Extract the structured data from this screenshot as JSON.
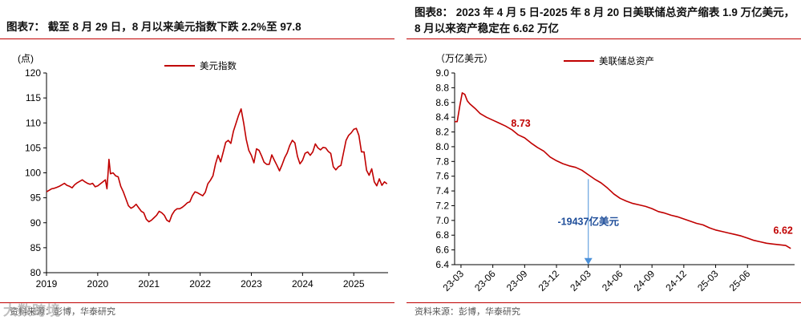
{
  "left": {
    "title": "图表7：  截至 8 月 29 日，8 月以来美元指数下跌 2.2%至 97.8",
    "source": "资料来源：彭博，华泰研究",
    "watermark": "大数跨境",
    "colors": {
      "series": "#c00000",
      "rule": "#c00000"
    },
    "chart_data": {
      "type": "line",
      "ylabel": "(点)",
      "ylim": [
        80,
        120
      ],
      "yticks": [
        80,
        85,
        90,
        95,
        100,
        105,
        110,
        115,
        120
      ],
      "xlim": [
        2019.0,
        2025.67
      ],
      "xticks": [
        "2019",
        "2020",
        "2021",
        "2022",
        "2023",
        "2024",
        "2025"
      ],
      "legend_position": "top-center",
      "series": [
        {
          "name": "美元指数",
          "color": "#c00000",
          "x": [
            2019.0,
            2019.05,
            2019.1,
            2019.15,
            2019.2,
            2019.25,
            2019.3,
            2019.35,
            2019.4,
            2019.45,
            2019.5,
            2019.55,
            2019.6,
            2019.65,
            2019.7,
            2019.75,
            2019.8,
            2019.85,
            2019.9,
            2019.95,
            2020.0,
            2020.05,
            2020.1,
            2020.15,
            2020.18,
            2020.2,
            2020.22,
            2020.25,
            2020.3,
            2020.35,
            2020.4,
            2020.45,
            2020.5,
            2020.55,
            2020.6,
            2020.65,
            2020.7,
            2020.75,
            2020.8,
            2020.85,
            2020.9,
            2020.95,
            2021.0,
            2021.05,
            2021.1,
            2021.15,
            2021.2,
            2021.25,
            2021.3,
            2021.35,
            2021.4,
            2021.45,
            2021.5,
            2021.55,
            2021.6,
            2021.65,
            2021.7,
            2021.75,
            2021.8,
            2021.85,
            2021.9,
            2021.95,
            2022.0,
            2022.05,
            2022.1,
            2022.15,
            2022.2,
            2022.25,
            2022.3,
            2022.35,
            2022.4,
            2022.45,
            2022.5,
            2022.55,
            2022.6,
            2022.65,
            2022.7,
            2022.75,
            2022.8,
            2022.85,
            2022.9,
            2022.95,
            2023.0,
            2023.05,
            2023.1,
            2023.15,
            2023.2,
            2023.25,
            2023.3,
            2023.35,
            2023.4,
            2023.45,
            2023.5,
            2023.55,
            2023.6,
            2023.65,
            2023.7,
            2023.75,
            2023.8,
            2023.85,
            2023.9,
            2023.95,
            2024.0,
            2024.05,
            2024.1,
            2024.15,
            2024.2,
            2024.25,
            2024.3,
            2024.35,
            2024.4,
            2024.45,
            2024.5,
            2024.55,
            2024.6,
            2024.65,
            2024.7,
            2024.75,
            2024.8,
            2024.85,
            2024.9,
            2024.95,
            2025.0,
            2025.05,
            2025.1,
            2025.15,
            2025.2,
            2025.25,
            2025.3,
            2025.35,
            2025.4,
            2025.45,
            2025.5,
            2025.55,
            2025.6,
            2025.65
          ],
          "y": [
            96.2,
            96.5,
            96.8,
            96.9,
            97.1,
            97.3,
            97.6,
            97.9,
            97.5,
            97.3,
            97.0,
            97.6,
            98.0,
            98.3,
            98.6,
            98.2,
            97.9,
            97.7,
            97.9,
            97.2,
            97.4,
            97.8,
            98.2,
            98.6,
            96.8,
            99.5,
            102.7,
            99.8,
            100.0,
            99.4,
            99.2,
            97.3,
            96.2,
            94.8,
            93.4,
            92.9,
            93.2,
            93.7,
            93.0,
            92.3,
            92.0,
            90.7,
            90.2,
            90.5,
            91.0,
            91.5,
            92.3,
            92.0,
            91.5,
            90.5,
            90.2,
            91.6,
            92.4,
            92.8,
            92.8,
            93.1,
            93.5,
            94.0,
            94.2,
            95.4,
            96.2,
            96.0,
            95.7,
            95.4,
            96.1,
            97.8,
            98.5,
            99.4,
            101.8,
            103.5,
            102.2,
            104.1,
            106.1,
            106.5,
            105.9,
            108.3,
            109.9,
            111.5,
            112.8,
            110.0,
            106.7,
            104.5,
            103.5,
            102.0,
            104.8,
            104.5,
            103.4,
            102.1,
            101.7,
            101.7,
            103.6,
            102.5,
            101.5,
            100.4,
            101.6,
            103.0,
            104.0,
            105.5,
            106.5,
            106.0,
            103.3,
            101.8,
            102.5,
            103.9,
            104.2,
            103.5,
            104.2,
            105.8,
            105.0,
            104.6,
            105.1,
            105.0,
            104.3,
            103.9,
            101.2,
            100.6,
            101.2,
            101.5,
            104.0,
            106.5,
            107.5,
            108.0,
            108.7,
            108.9,
            107.5,
            104.2,
            104.2,
            100.5,
            99.5,
            100.8,
            98.2,
            97.4,
            98.8,
            97.5,
            98.2,
            97.8
          ]
        }
      ]
    }
  },
  "right": {
    "title": "图表8：  2023 年 4 月 5 日-2025 年 8 月 20 日美联储总资产缩表 1.9 万亿美元，8 月以来资产稳定在 6.62 万亿",
    "source": "资料来源：彭博，华泰研究",
    "colors": {
      "series": "#c00000",
      "rule": "#c00000",
      "arrow": "#4a90d9",
      "annotation": "#1f4e9a"
    },
    "chart_data": {
      "type": "line",
      "ylabel": "（万亿美元）",
      "ylim": [
        6.4,
        9.0
      ],
      "yticks": [
        "6.4",
        "6.6",
        "6.8",
        "7.0",
        "7.2",
        "7.4",
        "7.6",
        "7.8",
        "8.0",
        "8.2",
        "8.4",
        "8.6",
        "8.8",
        "9.0"
      ],
      "xlim": [
        2023.0,
        2025.67
      ],
      "xticks": [
        "23-03",
        "23-06",
        "23-09",
        "23-12",
        "24-03",
        "24-06",
        "24-09",
        "24-12",
        "25-03",
        "25-06"
      ],
      "legend_position": "top-center",
      "annotations": [
        {
          "text": "8.73",
          "x": 2023.52,
          "y": 8.27,
          "color": "#c00000"
        },
        {
          "text": "-19437亿美元",
          "x": 2024.05,
          "y": 6.94,
          "color": "#1f4e9a"
        },
        {
          "text": "6.62",
          "x": 2025.58,
          "y": 6.82,
          "color": "#c00000"
        }
      ],
      "series": [
        {
          "name": "美联储总资产",
          "color": "#c00000",
          "x": [
            2023.0,
            2023.02,
            2023.04,
            2023.06,
            2023.08,
            2023.1,
            2023.12,
            2023.16,
            2023.2,
            2023.25,
            2023.3,
            2023.35,
            2023.4,
            2023.45,
            2023.5,
            2023.55,
            2023.6,
            2023.65,
            2023.7,
            2023.75,
            2023.8,
            2023.85,
            2023.9,
            2023.95,
            2024.0,
            2024.05,
            2024.1,
            2024.15,
            2024.2,
            2024.25,
            2024.3,
            2024.35,
            2024.4,
            2024.45,
            2024.5,
            2024.55,
            2024.6,
            2024.65,
            2024.7,
            2024.75,
            2024.8,
            2024.85,
            2024.9,
            2024.95,
            2025.0,
            2025.05,
            2025.1,
            2025.15,
            2025.2,
            2025.25,
            2025.3,
            2025.35,
            2025.4,
            2025.45,
            2025.5,
            2025.55,
            2025.6,
            2025.64
          ],
          "y": [
            8.34,
            8.34,
            8.55,
            8.73,
            8.71,
            8.62,
            8.58,
            8.52,
            8.45,
            8.4,
            8.36,
            8.32,
            8.28,
            8.23,
            8.16,
            8.12,
            8.05,
            7.99,
            7.94,
            7.86,
            7.81,
            7.77,
            7.74,
            7.72,
            7.68,
            7.62,
            7.56,
            7.51,
            7.44,
            7.36,
            7.3,
            7.26,
            7.23,
            7.21,
            7.19,
            7.16,
            7.12,
            7.1,
            7.07,
            7.05,
            7.02,
            6.99,
            6.96,
            6.94,
            6.9,
            6.87,
            6.85,
            6.83,
            6.81,
            6.79,
            6.76,
            6.73,
            6.71,
            6.69,
            6.68,
            6.67,
            6.66,
            6.62
          ]
        }
      ]
    }
  }
}
